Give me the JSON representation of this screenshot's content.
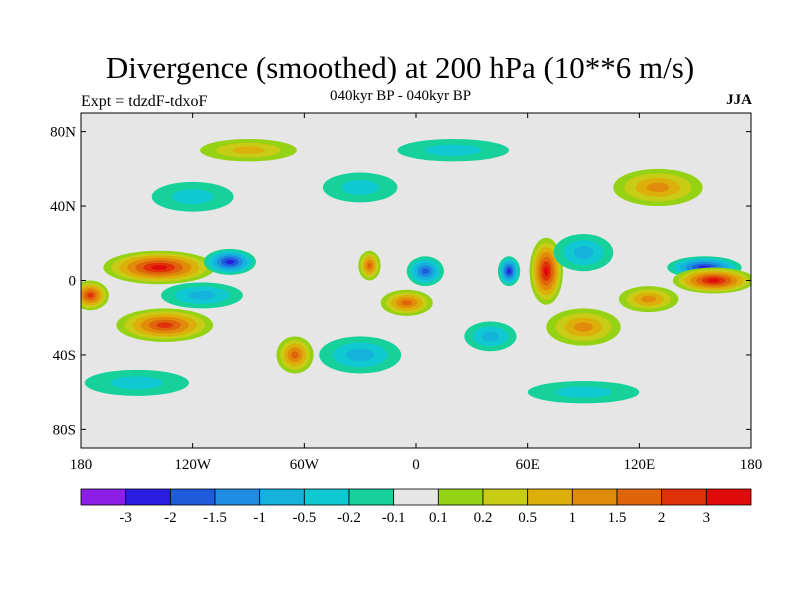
{
  "title": "Divergence (smoothed) at 200 hPa (10**6 m/s)",
  "left_label": "Expt = tdzdF-tdxoF",
  "center_label": "040kyr BP - 040kyr BP",
  "right_label": "JJA",
  "map": {
    "lat_ticks": [
      "80N",
      "40N",
      "0",
      "40S",
      "80S"
    ],
    "lat_values": [
      80,
      40,
      0,
      -40,
      -80
    ],
    "lon_ticks": [
      "180",
      "120W",
      "60W",
      "0",
      "60E",
      "120E",
      "180"
    ],
    "lon_values": [
      -180,
      -120,
      -60,
      0,
      60,
      120,
      180
    ],
    "lat_range": [
      -90,
      90
    ],
    "lon_range": [
      -180,
      180
    ],
    "background_color": "#e6e6e6"
  },
  "colorbar": {
    "colors": [
      "#8c1ee6",
      "#2a1ee0",
      "#1f5cdc",
      "#1e8ce0",
      "#15b2dc",
      "#10c8d2",
      "#16d29a",
      "#e6e6e6",
      "#96d214",
      "#c8cc14",
      "#dcaf0a",
      "#e08c0a",
      "#e0640a",
      "#e0320a",
      "#e00a0a"
    ],
    "labels": [
      "-3",
      "-2",
      "-1.5",
      "-1",
      "-0.5",
      "-0.2",
      "-0.1",
      "0.1",
      "0.2",
      "0.5",
      "1",
      "1.5",
      "2",
      "3"
    ]
  },
  "blobs": [
    {
      "lon": -138,
      "lat": 7,
      "rx": 30,
      "ry": 9,
      "level": 14
    },
    {
      "lon": -135,
      "lat": -24,
      "rx": 26,
      "ry": 9,
      "level": 13
    },
    {
      "lon": -175,
      "lat": -8,
      "rx": 10,
      "ry": 8,
      "level": 13
    },
    {
      "lon": -100,
      "lat": 10,
      "rx": 14,
      "ry": 7,
      "level": 1
    },
    {
      "lon": -115,
      "lat": -8,
      "rx": 22,
      "ry": 7,
      "level": 4
    },
    {
      "lon": -25,
      "lat": 8,
      "rx": 6,
      "ry": 8,
      "level": 12
    },
    {
      "lon": -5,
      "lat": -12,
      "rx": 14,
      "ry": 7,
      "level": 12
    },
    {
      "lon": 5,
      "lat": 5,
      "rx": 10,
      "ry": 8,
      "level": 2
    },
    {
      "lon": 50,
      "lat": 5,
      "rx": 6,
      "ry": 8,
      "level": 1
    },
    {
      "lon": 70,
      "lat": 5,
      "rx": 9,
      "ry": 18,
      "level": 14
    },
    {
      "lon": 90,
      "lat": 15,
      "rx": 16,
      "ry": 10,
      "level": 4
    },
    {
      "lon": 155,
      "lat": 7,
      "rx": 20,
      "ry": 6,
      "level": 1
    },
    {
      "lon": 160,
      "lat": 0,
      "rx": 22,
      "ry": 7,
      "level": 14
    },
    {
      "lon": 125,
      "lat": -10,
      "rx": 16,
      "ry": 7,
      "level": 11
    },
    {
      "lon": 90,
      "lat": -25,
      "rx": 20,
      "ry": 10,
      "level": 11
    },
    {
      "lon": 40,
      "lat": -30,
      "rx": 14,
      "ry": 8,
      "level": 4
    },
    {
      "lon": -65,
      "lat": -40,
      "rx": 10,
      "ry": 10,
      "level": 12
    },
    {
      "lon": -30,
      "lat": -40,
      "rx": 22,
      "ry": 10,
      "level": 4
    },
    {
      "lon": 130,
      "lat": 50,
      "rx": 24,
      "ry": 10,
      "level": 11
    },
    {
      "lon": -30,
      "lat": 50,
      "rx": 20,
      "ry": 8,
      "level": 5
    },
    {
      "lon": -120,
      "lat": 45,
      "rx": 22,
      "ry": 8,
      "level": 5
    },
    {
      "lon": 20,
      "lat": 70,
      "rx": 30,
      "ry": 6,
      "level": 5
    },
    {
      "lon": -150,
      "lat": -55,
      "rx": 28,
      "ry": 7,
      "level": 5
    },
    {
      "lon": 90,
      "lat": -60,
      "rx": 30,
      "ry": 6,
      "level": 5
    },
    {
      "lon": -90,
      "lat": 70,
      "rx": 26,
      "ry": 6,
      "level": 10
    }
  ]
}
